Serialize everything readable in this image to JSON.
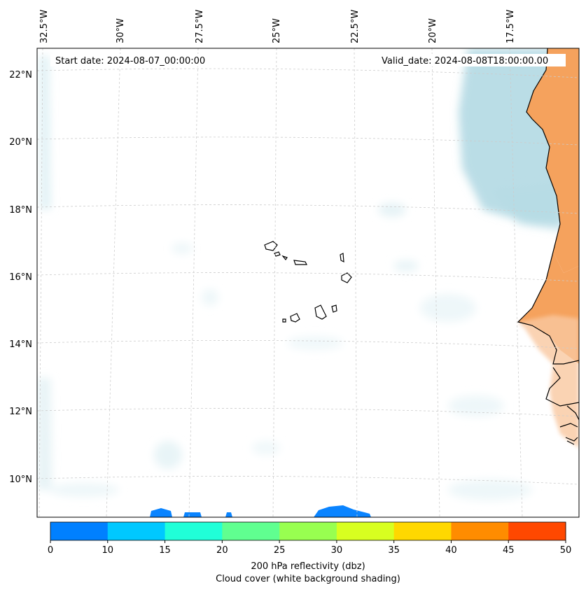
{
  "map": {
    "start_date_label": "Start date: 2024-08-07_00:00:00",
    "valid_date_label": "Valid_date: 2024-08-08T18:00:00.00",
    "lon_labels": [
      "32.5°W",
      "30°W",
      "27.5°W",
      "25°W",
      "22.5°W",
      "20°W",
      "17.5°W"
    ],
    "lat_labels": [
      "22°N",
      "20°N",
      "18°N",
      "16°N",
      "14°N",
      "12°N",
      "10°N"
    ]
  },
  "colorbar": {
    "title_line1": "200 hPa reflectivity (dbz)",
    "title_line2": "Cloud cover (white background shading)",
    "ticks": [
      "0",
      "10",
      "15",
      "20",
      "25",
      "30",
      "35",
      "40",
      "45",
      "50"
    ],
    "colors": [
      "#0080ff",
      "#00c8ff",
      "#20ffd8",
      "#60ff90",
      "#98ff50",
      "#d8ff20",
      "#ffd800",
      "#ff8c00",
      "#ff4800"
    ]
  },
  "colors": {
    "land_hot": "#f5a25d",
    "land_warm": "#f9c8a0",
    "cloud": "#a9d4e0",
    "reflectivity": "#0a84ff",
    "coast": "#000000",
    "grid": "#cccccc"
  }
}
